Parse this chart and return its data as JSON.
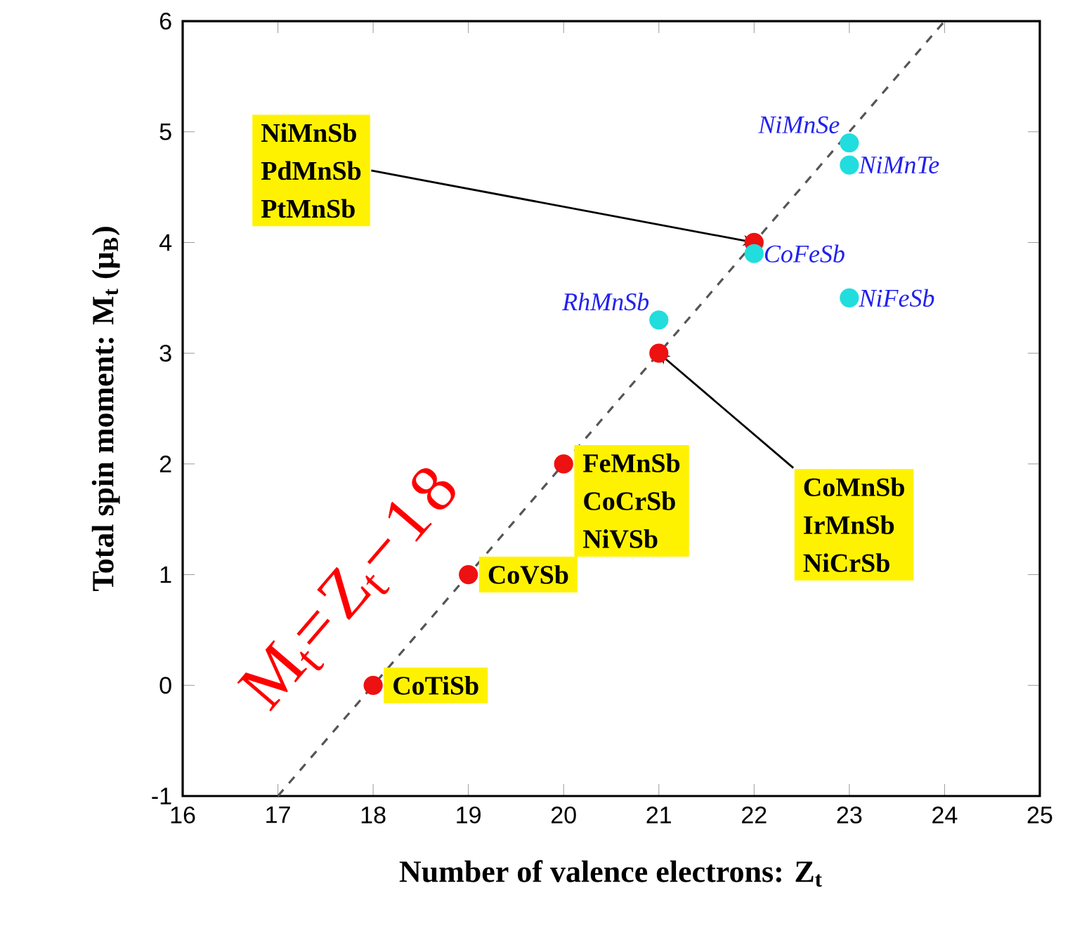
{
  "chart_data": {
    "type": "scatter",
    "xlabel": "Number of valence electrons: Z$_{t}$",
    "ylabel": "Total spin moment: M$_{t}$ (μ$_{B}$)",
    "xlim": [
      16,
      25
    ],
    "xticks": [
      16,
      17,
      18,
      19,
      20,
      21,
      22,
      23,
      24,
      25
    ],
    "ylim": [
      -1,
      6
    ],
    "yticks": [
      -1,
      0,
      1,
      2,
      3,
      4,
      5,
      6
    ],
    "grid": false,
    "legend": false,
    "series": [
      {
        "name": "M$_{t}$=Z$_{t}$−18",
        "type": "line",
        "line_style": "dashed",
        "marker": "none",
        "color": "#555555",
        "x": [
          17,
          24
        ],
        "values": [
          -1,
          6
        ]
      },
      {
        "color": "#ee1111",
        "marker": "circle",
        "x": [
          18,
          19,
          20,
          21,
          22
        ],
        "values": [
          0,
          1,
          2,
          3,
          4
        ]
      },
      {
        "color": "#22dddd",
        "marker": "circle",
        "x": [
          23,
          23,
          22,
          23,
          21
        ],
        "values": [
          4.9,
          4.7,
          3.9,
          3.5,
          3.3
        ],
        "value_labels": [
          "NiMnSe",
          "NiMnTe",
          "CoFeSb",
          "NiFeSb",
          "RhMnSb"
        ]
      }
    ],
    "annotations": [
      {
        "text": "CoTiSb",
        "x": 18,
        "y": 0
      },
      {
        "text": "CoVSb",
        "x": 19,
        "y": 1
      },
      {
        "text": "FeMnSb",
        "x": 20,
        "y": 2
      },
      "CoCrSb",
      "NiVSb",
      {
        "text": "CoMnSb",
        "x": 21,
        "y": 3
      },
      "IrMnSb",
      "NiCrSb",
      {
        "text": "NiMnSb",
        "x": 22,
        "y": 4
      },
      "PdMnSb",
      "PtMnSb"
    ]
  }
}
